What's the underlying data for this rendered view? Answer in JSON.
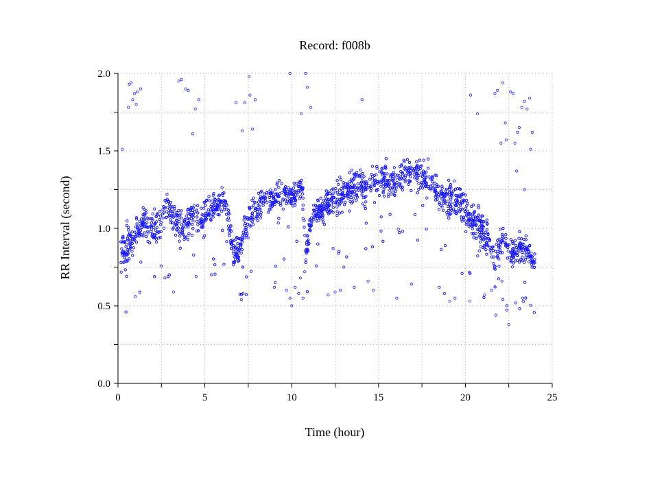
{
  "chart_data": {
    "type": "scatter",
    "title": "Record:  f008b",
    "xlabel": "Time (hour)",
    "ylabel": "RR Interval (second)",
    "xlim": [
      0,
      25
    ],
    "ylim": [
      0,
      2
    ],
    "xticks": [
      0,
      5,
      10,
      15,
      20,
      25
    ],
    "xtick_labels": [
      "0",
      "5",
      "10",
      "15",
      "20",
      "25"
    ],
    "yticks": [
      0,
      0.5,
      1,
      1.5,
      2
    ],
    "ytick_labels": [
      "0.0",
      "0.5",
      "1.0",
      "1.5",
      "2.0"
    ],
    "grid": true,
    "legend": "none",
    "marker": "open-circle",
    "color": "#1a1aff",
    "trend": [
      [
        0.15,
        0.85,
        0.12
      ],
      [
        0.5,
        0.88,
        0.12
      ],
      [
        1.0,
        0.96,
        0.08
      ],
      [
        1.5,
        1.05,
        0.09
      ],
      [
        2.0,
        0.98,
        0.1
      ],
      [
        2.3,
        1.0,
        0.1
      ],
      [
        2.7,
        1.15,
        0.09
      ],
      [
        3.2,
        1.08,
        0.1
      ],
      [
        3.7,
        1.0,
        0.1
      ],
      [
        4.2,
        1.08,
        0.1
      ],
      [
        4.7,
        1.05,
        0.09
      ],
      [
        5.0,
        1.1,
        0.08
      ],
      [
        5.6,
        1.15,
        0.07
      ],
      [
        6.2,
        1.18,
        0.06
      ],
      [
        6.6,
        0.85,
        0.08
      ],
      [
        7.1,
        0.88,
        0.1
      ],
      [
        7.5,
        1.08,
        0.1
      ],
      [
        8.0,
        1.12,
        0.08
      ],
      [
        8.6,
        1.2,
        0.06
      ],
      [
        9.2,
        1.2,
        0.07
      ],
      [
        9.7,
        1.22,
        0.07
      ],
      [
        10.2,
        1.22,
        0.08
      ],
      [
        10.6,
        1.28,
        0.07
      ],
      [
        10.8,
        0.82,
        0.08
      ],
      [
        11.2,
        1.1,
        0.08
      ],
      [
        11.8,
        1.12,
        0.08
      ],
      [
        12.3,
        1.18,
        0.08
      ],
      [
        12.8,
        1.2,
        0.09
      ],
      [
        13.3,
        1.25,
        0.09
      ],
      [
        13.8,
        1.3,
        0.1
      ],
      [
        14.3,
        1.28,
        0.1
      ],
      [
        14.8,
        1.32,
        0.09
      ],
      [
        15.3,
        1.32,
        0.09
      ],
      [
        15.8,
        1.3,
        0.09
      ],
      [
        16.3,
        1.33,
        0.09
      ],
      [
        16.8,
        1.35,
        0.09
      ],
      [
        17.3,
        1.36,
        0.09
      ],
      [
        17.8,
        1.3,
        0.09
      ],
      [
        18.3,
        1.25,
        0.1
      ],
      [
        18.8,
        1.2,
        0.1
      ],
      [
        19.3,
        1.18,
        0.1
      ],
      [
        19.8,
        1.15,
        0.1
      ],
      [
        20.3,
        1.05,
        0.11
      ],
      [
        20.8,
        1.0,
        0.1
      ],
      [
        21.3,
        0.95,
        0.1
      ],
      [
        21.7,
        0.82,
        0.1
      ],
      [
        22.2,
        0.95,
        0.1
      ],
      [
        22.6,
        0.82,
        0.09
      ],
      [
        23.0,
        0.88,
        0.09
      ],
      [
        23.5,
        0.85,
        0.08
      ],
      [
        24.0,
        0.78,
        0.06
      ]
    ],
    "outliers": [
      [
        0.25,
        1.51
      ],
      [
        0.6,
        1.78
      ],
      [
        0.65,
        1.93
      ],
      [
        0.75,
        1.94
      ],
      [
        0.85,
        1.83
      ],
      [
        0.95,
        1.87
      ],
      [
        1.05,
        1.8
      ],
      [
        1.1,
        1.88
      ],
      [
        1.3,
        1.9
      ],
      [
        3.5,
        1.95
      ],
      [
        3.65,
        1.96
      ],
      [
        3.9,
        1.9
      ],
      [
        4.05,
        1.89
      ],
      [
        4.3,
        1.61
      ],
      [
        4.45,
        1.77
      ],
      [
        4.65,
        1.83
      ],
      [
        6.8,
        1.81
      ],
      [
        7.15,
        1.63
      ],
      [
        7.3,
        1.81
      ],
      [
        7.55,
        1.98
      ],
      [
        7.6,
        1.86
      ],
      [
        7.75,
        1.64
      ],
      [
        7.9,
        1.83
      ],
      [
        9.9,
        2.0
      ],
      [
        10.55,
        1.74
      ],
      [
        10.8,
        2.0
      ],
      [
        10.9,
        1.91
      ],
      [
        11.1,
        1.78
      ],
      [
        14.05,
        1.83
      ],
      [
        20.3,
        1.86
      ],
      [
        20.7,
        1.74
      ],
      [
        21.7,
        1.87
      ],
      [
        21.85,
        1.89
      ],
      [
        22.05,
        1.55
      ],
      [
        22.15,
        1.94
      ],
      [
        22.3,
        1.68
      ],
      [
        22.35,
        1.57
      ],
      [
        22.6,
        1.88
      ],
      [
        22.75,
        1.87
      ],
      [
        22.85,
        1.55
      ],
      [
        23.0,
        1.62
      ],
      [
        23.1,
        1.65
      ],
      [
        23.25,
        1.78
      ],
      [
        23.4,
        1.82
      ],
      [
        23.55,
        1.77
      ],
      [
        23.7,
        1.84
      ],
      [
        23.75,
        1.51
      ],
      [
        23.85,
        1.62
      ],
      [
        23.4,
        1.25
      ],
      [
        22.95,
        1.37
      ],
      [
        9.0,
        0.62
      ],
      [
        9.05,
        0.65
      ],
      [
        9.7,
        0.6
      ],
      [
        9.9,
        0.55
      ],
      [
        10.0,
        0.5
      ],
      [
        10.2,
        0.62
      ],
      [
        10.4,
        0.58
      ],
      [
        10.5,
        0.68
      ],
      [
        10.65,
        0.55
      ],
      [
        10.75,
        0.72
      ],
      [
        7.1,
        0.54
      ],
      [
        7.2,
        0.58
      ],
      [
        12.1,
        0.57
      ],
      [
        12.5,
        0.59
      ],
      [
        12.8,
        0.6
      ],
      [
        13.0,
        0.75
      ],
      [
        13.6,
        0.62
      ],
      [
        14.4,
        0.66
      ],
      [
        14.7,
        0.6
      ],
      [
        16.05,
        0.55
      ],
      [
        16.9,
        0.64
      ],
      [
        18.5,
        0.62
      ],
      [
        18.8,
        0.58
      ],
      [
        19.1,
        0.53
      ],
      [
        19.4,
        0.55
      ],
      [
        20.25,
        0.53
      ],
      [
        21.1,
        0.57
      ],
      [
        21.5,
        0.6
      ],
      [
        21.75,
        0.44
      ],
      [
        22.1,
        0.66
      ],
      [
        22.5,
        0.38
      ],
      [
        22.9,
        0.52
      ],
      [
        23.3,
        0.55
      ],
      [
        1.0,
        0.56
      ],
      [
        2.7,
        0.68
      ],
      [
        3.2,
        0.59
      ],
      [
        4.5,
        0.69
      ]
    ]
  }
}
